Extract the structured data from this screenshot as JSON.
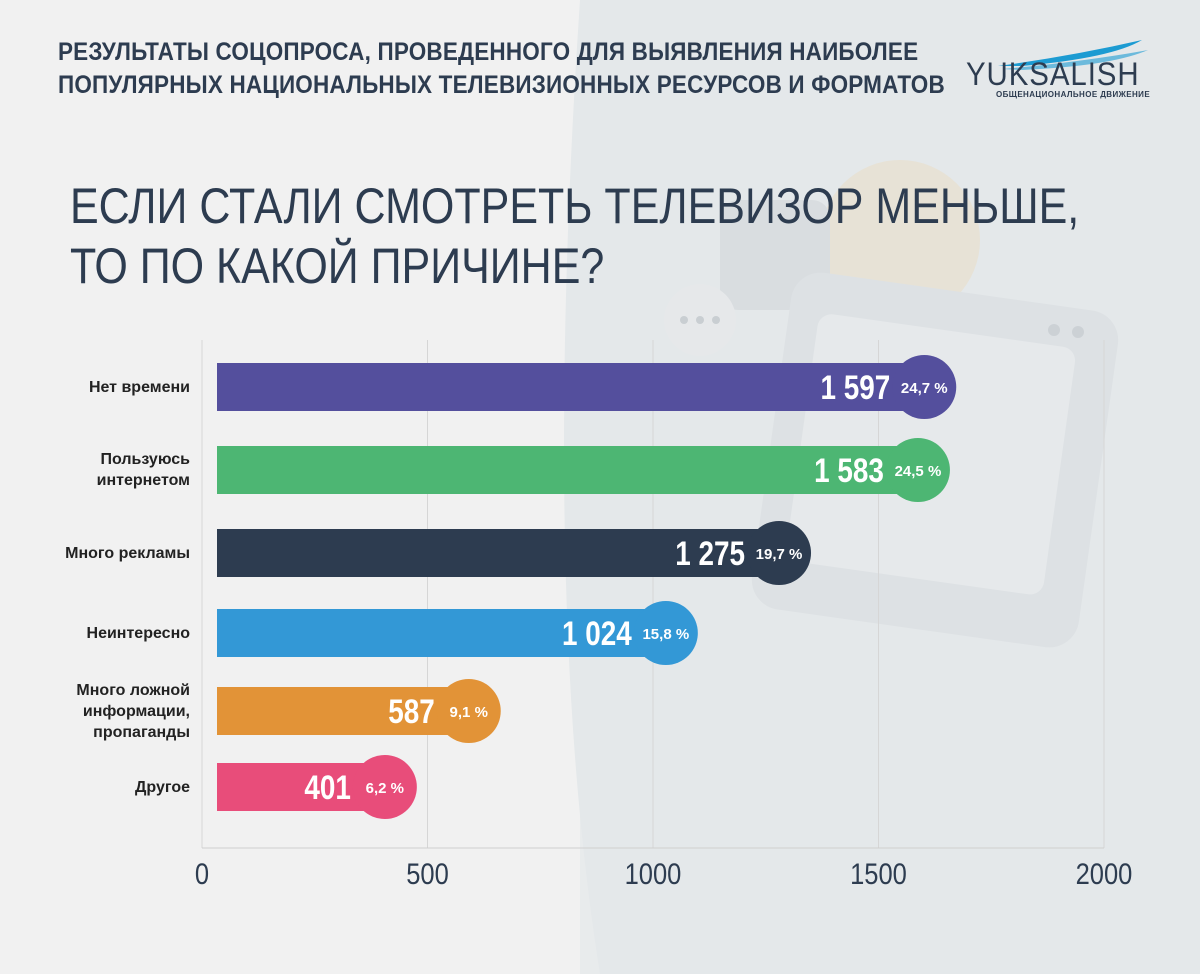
{
  "header": {
    "title_line1": "РЕЗУЛЬТАТЫ СОЦОПРОСА, ПРОВЕДЕННОГО ДЛЯ ВЫЯВЛЕНИЯ НАИБОЛЕЕ",
    "title_line2": "ПОПУЛЯРНЫХ НАЦИОНАЛЬНЫХ ТЕЛЕВИЗИОННЫХ РЕСУРСОВ И ФОРМАТОВ"
  },
  "logo": {
    "wordmark": "YUKSALISH",
    "tagline": "ОБЩЕНАЦИОНАЛЬНОЕ ДВИЖЕНИЕ",
    "accent_color": "#1c9bd2"
  },
  "question": {
    "line1": "ЕСЛИ СТАЛИ СМОТРЕТЬ ТЕЛЕВИЗОР МЕНЬШЕ,",
    "line2": "ТО ПО КАКОЙ ПРИЧИНЕ?"
  },
  "chart_data": {
    "type": "bar",
    "orientation": "horizontal",
    "categories": [
      "Нет времени",
      "Пользуюсь\nинтернетом",
      "Много рекламы",
      "Неинтересно",
      "Много ложной\nинформации,\nпропаганды",
      "Другое"
    ],
    "values": [
      1597,
      1583,
      1275,
      1024,
      587,
      401
    ],
    "value_labels": [
      "1 597",
      "1 583",
      "1 275",
      "1 024",
      "587",
      "401"
    ],
    "percent_labels": [
      "24,7 %",
      "24,5 %",
      "19,7 %",
      "15,8 %",
      "9,1 %",
      "6,2 %"
    ],
    "colors": [
      "#544f9d",
      "#4db673",
      "#2d3c50",
      "#3398d6",
      "#e29337",
      "#e84d7a"
    ],
    "xlim": [
      0,
      2000
    ],
    "xticks": [
      0,
      500,
      1000,
      1500,
      2000
    ],
    "xtick_labels": [
      "0",
      "500",
      "1000",
      "1500",
      "2000"
    ],
    "grid": true
  }
}
